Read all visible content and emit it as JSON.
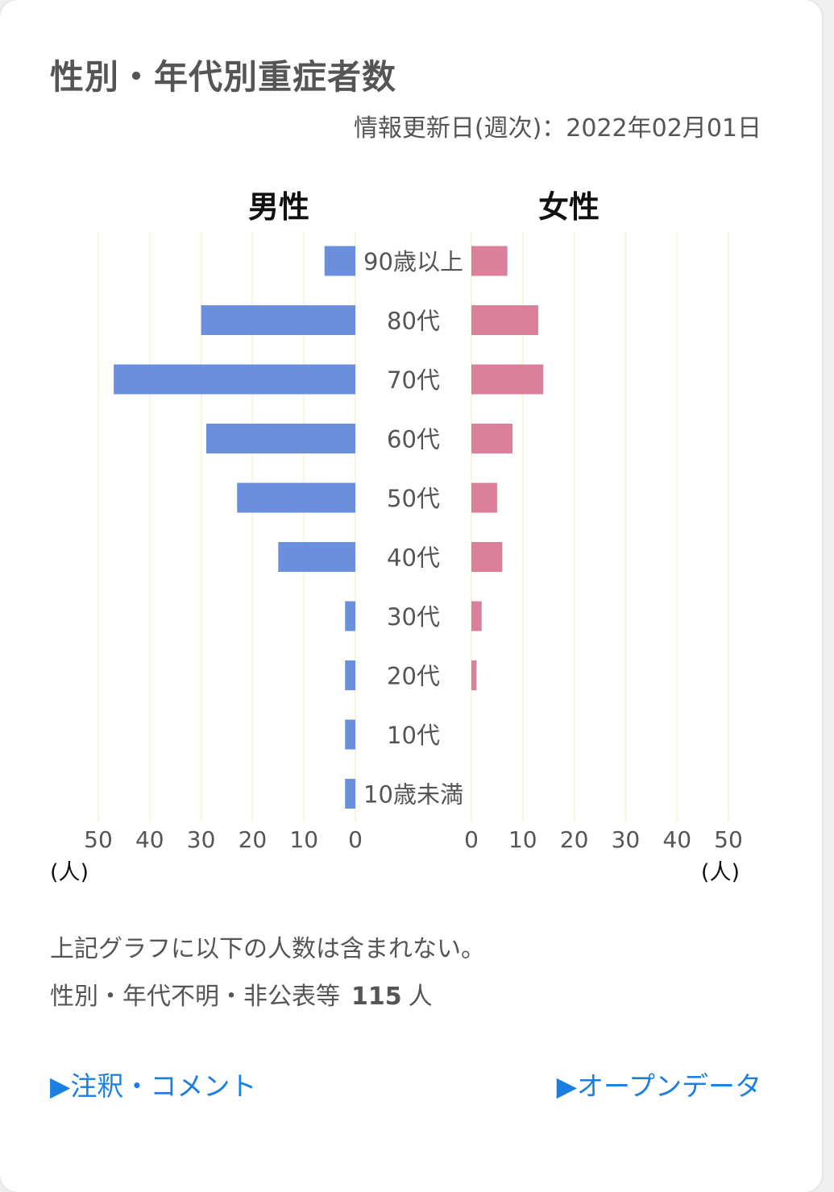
{
  "card": {
    "title": "性別・年代別重症者数",
    "updated": "情報更新日(週次)：2022年02月01日"
  },
  "chart_data": {
    "type": "bar",
    "orientation": "horizontal-butterfly",
    "categories": [
      "90歳以上",
      "80代",
      "70代",
      "60代",
      "50代",
      "40代",
      "30代",
      "20代",
      "10代",
      "10歳未満"
    ],
    "series": [
      {
        "name": "男性",
        "color": "#6a8fdc",
        "values": [
          6,
          30,
          47,
          29,
          23,
          15,
          2,
          2,
          2,
          2
        ]
      },
      {
        "name": "女性",
        "color": "#dc7f9a",
        "values": [
          7,
          13,
          14,
          8,
          5,
          6,
          2,
          1,
          0,
          0
        ]
      }
    ],
    "xlim": [
      0,
      50
    ],
    "ticks": [
      "50",
      "40",
      "30",
      "20",
      "10",
      "0"
    ],
    "ticks_right": [
      "0",
      "10",
      "20",
      "30",
      "40",
      "50"
    ],
    "unit": "(人)",
    "grid_color": "#fbf4d8",
    "grid": true
  },
  "notes": {
    "line1": "上記グラフに以下の人数は含まれない。",
    "line2_label": "性別・年代不明・非公表等",
    "line2_count": "115",
    "line2_unit": "人"
  },
  "links": {
    "comments": "▶注釈・コメント",
    "opendata": "▶オープンデータ"
  }
}
